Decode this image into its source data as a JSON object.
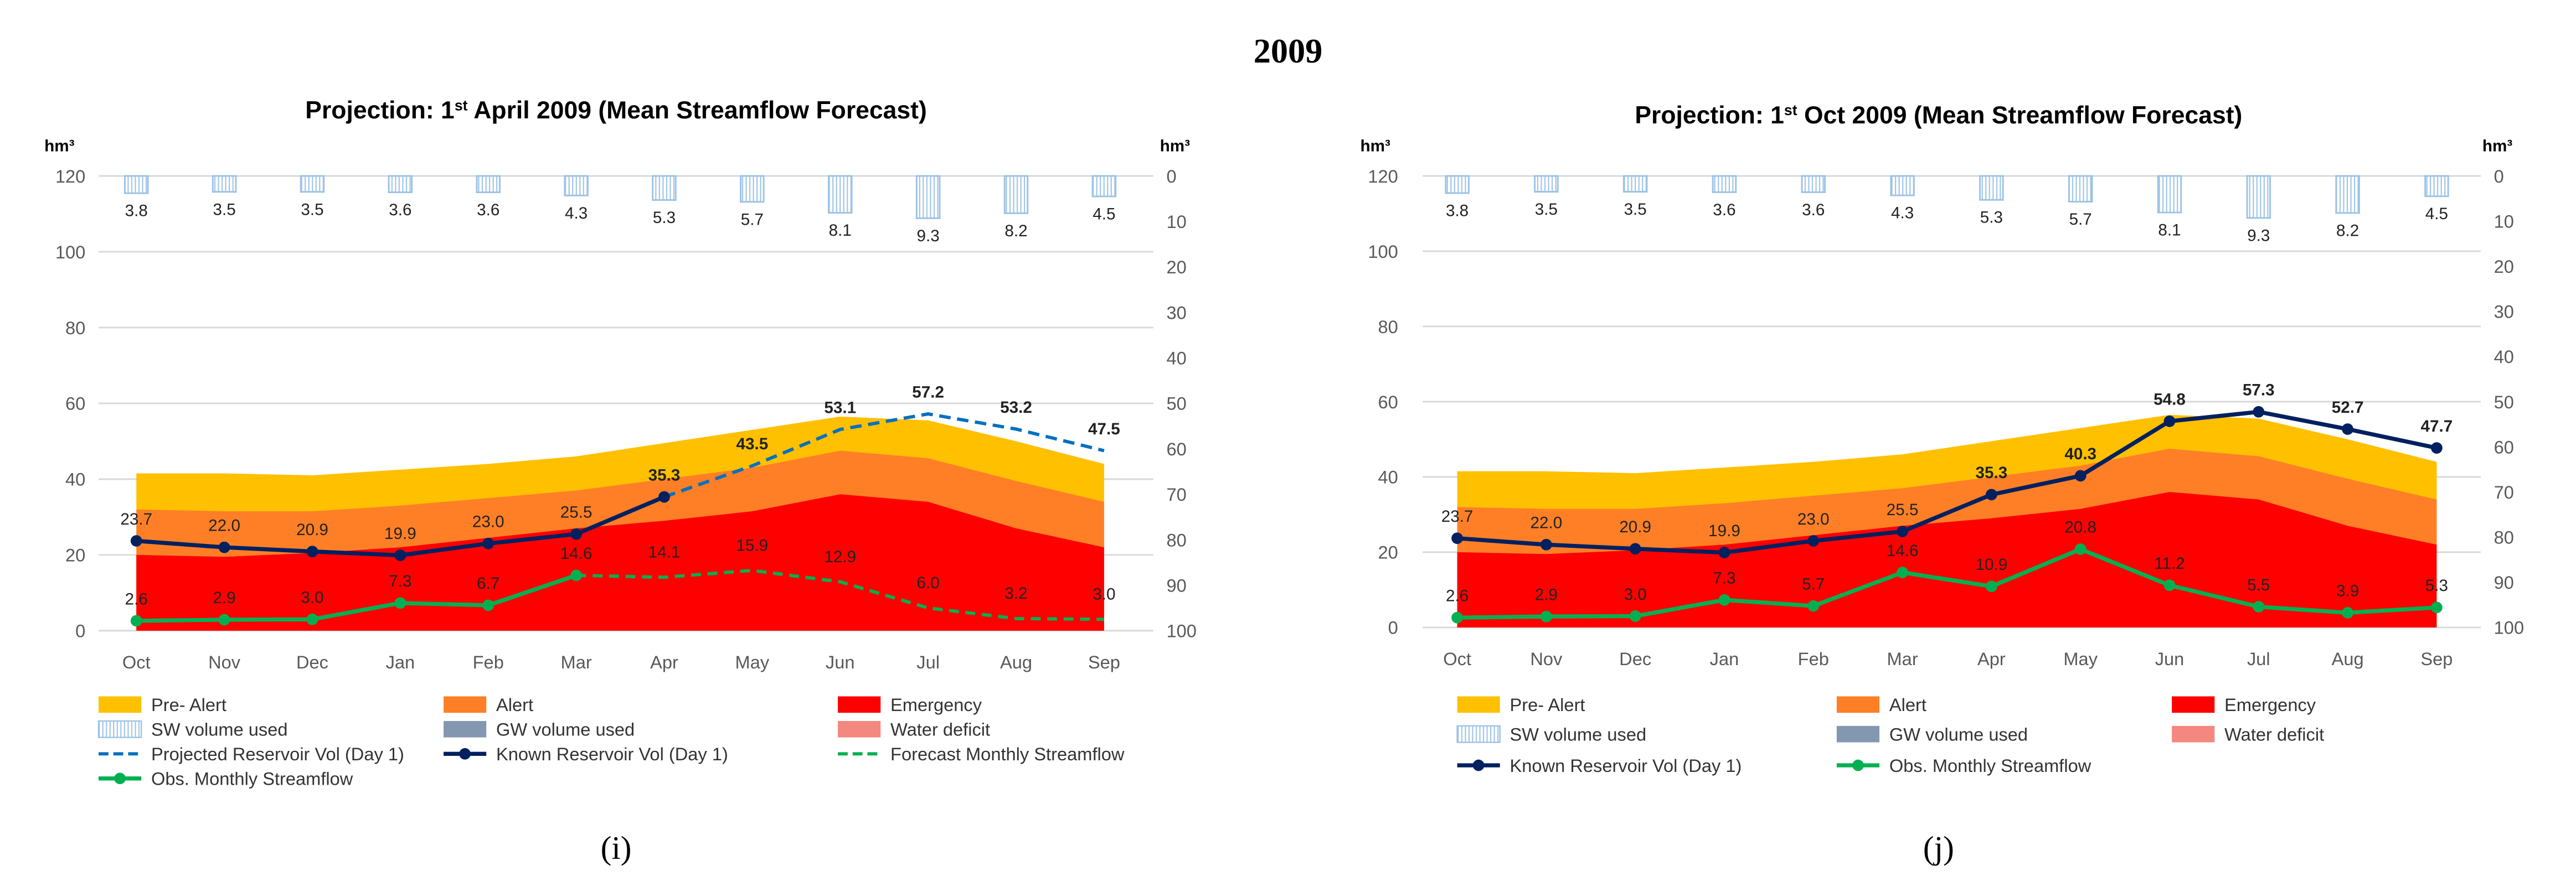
{
  "figure_title": "2009",
  "colors": {
    "pre_alert": "#FFC000",
    "alert": "#FF7F27",
    "emergency": "#FF0000",
    "sw": "#9DC3E6",
    "gw": "#8497B0",
    "deficit": "#F4877F",
    "known": "#002060",
    "projected": "#0070C0",
    "streamflow": "#00B050"
  },
  "chart_data": [
    {
      "type": "area",
      "id": "i",
      "caption": "(i)",
      "title_pre": "Projection: 1",
      "title_sup": "st",
      "title_post": " April 2009 (Mean Streamflow Forecast)",
      "ylabel": "hm³",
      "y2label": "hm³",
      "ylim": [
        0,
        120
      ],
      "y2lim": [
        100,
        0
      ],
      "yticks": [
        0,
        20,
        40,
        60,
        80,
        100,
        120
      ],
      "y2ticks": [
        0,
        10,
        20,
        30,
        40,
        50,
        60,
        70,
        80,
        90,
        100
      ],
      "categories": [
        "Oct",
        "Nov",
        "Dec",
        "Jan",
        "Feb",
        "Mar",
        "Apr",
        "May",
        "Jun",
        "Jul",
        "Aug",
        "Sep"
      ],
      "thresholds": {
        "emergency": [
          20,
          19.5,
          20.5,
          22,
          24.5,
          27,
          29,
          31.5,
          36,
          34,
          27,
          22
        ],
        "alert": [
          32,
          31.5,
          31.5,
          33,
          35,
          37,
          40,
          43,
          47.5,
          45.5,
          39.5,
          34
        ],
        "pre_alert": [
          41.5,
          41.5,
          41,
          42.5,
          44,
          46,
          49.5,
          53,
          56.5,
          55.5,
          50,
          44
        ]
      },
      "sw_volume_used": [
        3.8,
        3.5,
        3.5,
        3.6,
        3.6,
        4.3,
        5.3,
        5.7,
        8.1,
        9.3,
        8.2,
        4.5
      ],
      "sw_labels": [
        "3.8",
        "3.5",
        "3.5",
        "3.6",
        "3.6",
        "4.3",
        "5.3",
        "5.7",
        "8.1",
        "9.3",
        "8.2",
        "4.5"
      ],
      "known_reservoir": [
        23.7,
        22.0,
        20.9,
        19.9,
        23.0,
        25.5,
        35.3,
        null,
        null,
        null,
        null,
        null
      ],
      "known_labels": [
        "23.7",
        "22.0",
        "20.9",
        "19.9",
        "23.0",
        "25.5",
        "35.3",
        "",
        "",
        "",
        "",
        ""
      ],
      "projected_reservoir": [
        null,
        null,
        null,
        null,
        null,
        null,
        35.3,
        43.5,
        53.1,
        57.2,
        53.2,
        47.5
      ],
      "projected_labels": [
        "",
        "",
        "",
        "",
        "",
        "",
        "",
        "43.5",
        "53.1",
        "57.2",
        "53.2",
        "47.5"
      ],
      "obs_streamflow": [
        2.6,
        2.9,
        3.0,
        7.3,
        6.7,
        14.6,
        null,
        null,
        null,
        null,
        null,
        null
      ],
      "obs_labels": [
        "2.6",
        "2.9",
        "3.0",
        "7.3",
        "6.7",
        "14.6",
        "",
        "",
        "",
        "",
        "",
        ""
      ],
      "forecast_streamflow": [
        null,
        null,
        null,
        null,
        null,
        14.6,
        14.1,
        15.9,
        12.9,
        6.0,
        3.2,
        3.0
      ],
      "forecast_labels": [
        "",
        "",
        "",
        "",
        "",
        "",
        "14.1",
        "15.9",
        "12.9",
        "6.0",
        "3.2",
        "3.0"
      ],
      "legend": [
        "Pre- Alert",
        "Alert",
        "Emergency",
        "SW volume used",
        "GW volume used",
        "Water deficit",
        "Projected Reservoir Vol (Day 1)",
        "Known Reservoir Vol (Day 1)",
        "Forecast Monthly Streamflow",
        "Obs. Monthly Streamflow"
      ],
      "legend_keys": [
        "pre_alert",
        "alert",
        "emergency",
        "sw",
        "gw",
        "deficit",
        "projected",
        "known",
        "forecast",
        "streamflow"
      ]
    },
    {
      "type": "area",
      "id": "j",
      "caption": "(j)",
      "title_pre": "Projection: 1",
      "title_sup": "st",
      "title_post": " Oct 2009 (Mean Streamflow Forecast)",
      "ylabel": "hm³",
      "y2label": "hm³",
      "ylim": [
        0,
        120
      ],
      "y2lim": [
        100,
        0
      ],
      "yticks": [
        0,
        20,
        40,
        60,
        80,
        100,
        120
      ],
      "y2ticks": [
        0,
        10,
        20,
        30,
        40,
        50,
        60,
        70,
        80,
        90,
        100
      ],
      "categories": [
        "Oct",
        "Nov",
        "Dec",
        "Jan",
        "Feb",
        "Mar",
        "Apr",
        "May",
        "Jun",
        "Jul",
        "Aug",
        "Sep"
      ],
      "thresholds": {
        "emergency": [
          20,
          19.5,
          20.5,
          22,
          24.5,
          27,
          29,
          31.5,
          36,
          34,
          27,
          22
        ],
        "alert": [
          32,
          31.5,
          31.5,
          33,
          35,
          37,
          40,
          43,
          47.5,
          45.5,
          39.5,
          34
        ],
        "pre_alert": [
          41.5,
          41.5,
          41,
          42.5,
          44,
          46,
          49.5,
          53,
          56.5,
          55.5,
          50,
          44
        ]
      },
      "sw_volume_used": [
        3.8,
        3.5,
        3.5,
        3.6,
        3.6,
        4.3,
        5.3,
        5.7,
        8.1,
        9.3,
        8.2,
        4.5
      ],
      "sw_labels": [
        "3.8",
        "3.5",
        "3.5",
        "3.6",
        "3.6",
        "4.3",
        "5.3",
        "5.7",
        "8.1",
        "9.3",
        "8.2",
        "4.5"
      ],
      "known_reservoir": [
        23.7,
        22.0,
        20.9,
        19.9,
        23.0,
        25.5,
        35.3,
        40.3,
        54.8,
        57.3,
        52.7,
        47.7
      ],
      "known_labels": [
        "23.7",
        "22.0",
        "20.9",
        "19.9",
        "23.0",
        "25.5",
        "35.3",
        "40.3",
        "54.8",
        "57.3",
        "52.7",
        "47.7"
      ],
      "projected_reservoir": [],
      "projected_labels": [],
      "obs_streamflow": [
        2.6,
        2.9,
        3.0,
        7.3,
        5.7,
        14.6,
        10.9,
        20.8,
        11.2,
        5.5,
        3.9,
        5.3
      ],
      "obs_labels": [
        "2.6",
        "2.9",
        "3.0",
        "7.3",
        "5.7",
        "14.6",
        "10.9",
        "20.8",
        "11.2",
        "5.5",
        "3.9",
        "5.3"
      ],
      "forecast_streamflow": [],
      "forecast_labels": [],
      "legend": [
        "Pre- Alert",
        "Alert",
        "Emergency",
        "SW volume used",
        "GW volume used",
        "Water deficit",
        "Known Reservoir Vol (Day 1)",
        "Obs. Monthly Streamflow"
      ],
      "legend_keys": [
        "pre_alert",
        "alert",
        "emergency",
        "sw",
        "gw",
        "deficit",
        "known",
        "streamflow"
      ]
    }
  ]
}
